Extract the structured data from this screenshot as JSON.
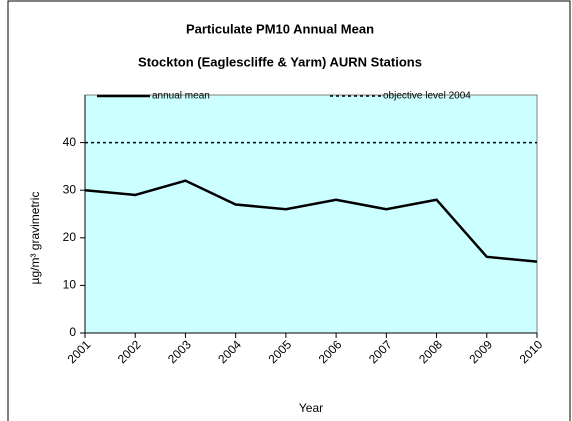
{
  "chart_data": {
    "type": "line",
    "title": "Particulate PM10 Annual Mean",
    "subtitle": "Stockton (Eaglescliffe & Yarm) AURN Stations",
    "x_label": "Year",
    "y_label": "µg/m³ gravimetric",
    "categories": [
      "2001",
      "2002",
      "2003",
      "2004",
      "2005",
      "2006",
      "2007",
      "2008",
      "2009",
      "2010"
    ],
    "series": [
      {
        "name": "annual mean",
        "color": "#000000",
        "style": "solid",
        "values": [
          30,
          29,
          32,
          27,
          26,
          28,
          26,
          28,
          16,
          15
        ]
      },
      {
        "name": "objective level 2004",
        "color": "#000000",
        "style": "dotted",
        "values": [
          40,
          40,
          40,
          40,
          40,
          40,
          40,
          40,
          40,
          40
        ]
      }
    ],
    "ylim": [
      0,
      50
    ],
    "yticks": [
      0,
      10,
      20,
      30,
      40
    ],
    "legend": "top",
    "plot_background": "#ccffff"
  }
}
